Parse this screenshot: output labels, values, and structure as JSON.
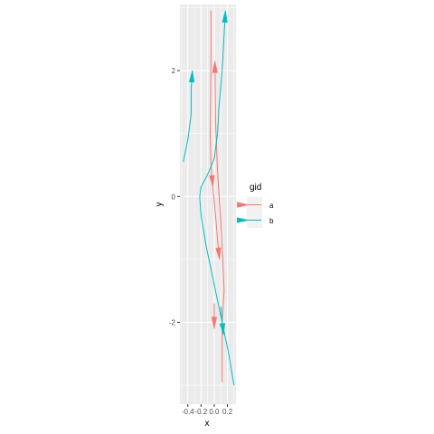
{
  "chart_data": {
    "type": "line",
    "xlabel": "x",
    "ylabel": "y",
    "xlim": [
      -0.52,
      0.33
    ],
    "ylim": [
      -3.3,
      3.05
    ],
    "x_ticks": [
      -0.4,
      -0.2,
      0.0,
      0.2
    ],
    "x_tick_labels": [
      "-0.4",
      "-0.2",
      "0.0",
      "0.2"
    ],
    "y_ticks": [
      -2,
      0,
      2
    ],
    "y_tick_labels": [
      "-2",
      "0",
      "2"
    ],
    "grid": true,
    "legend": {
      "title": "gid",
      "position": "right"
    },
    "colors": {
      "a": "#F8766D",
      "b": "#00BFC4",
      "panel": "#EBEBEB",
      "grid": "#FFFFFF"
    },
    "series": [
      {
        "name": "a",
        "color": "#F8766D",
        "arrows": "segment-ends",
        "paths": [
          {
            "x": [
              -0.05,
              -0.05,
              -0.06,
              -0.05,
              -0.02
            ],
            "y": [
              2.95,
              2.0,
              1.0,
              0.5,
              0.15
            ]
          },
          {
            "x": [
              -0.02,
              0.02,
              0.06,
              0.08
            ],
            "y": [
              0.15,
              -0.3,
              -0.8,
              -1.0
            ]
          },
          {
            "x": [
              0.0,
              0.0
            ],
            "y": [
              -1.7,
              -2.1
            ]
          },
          {
            "x": [
              0.12,
              0.12,
              0.15,
              0.13,
              0.1,
              0.05,
              0.02,
              0.01
            ],
            "y": [
              -2.95,
              -2.0,
              -1.5,
              -1.0,
              -0.4,
              0.4,
              1.2,
              2.15
            ]
          }
        ]
      },
      {
        "name": "b",
        "color": "#00BFC4",
        "arrows": "segment-ends",
        "paths": [
          {
            "x": [
              0.3,
              0.22,
              0.12,
              0.0,
              -0.12,
              -0.2,
              -0.22,
              -0.2,
              -0.1,
              0.0,
              0.05,
              0.07,
              0.12,
              0.17
            ],
            "y": [
              -3.0,
              -2.5,
              -2.0,
              -1.4,
              -0.8,
              -0.3,
              0.0,
              0.15,
              0.35,
              0.6,
              1.0,
              1.4,
              2.0,
              2.95
            ]
          },
          {
            "x": [
              -0.47,
              -0.4,
              -0.35,
              -0.35,
              -0.33
            ],
            "y": [
              0.55,
              0.9,
              1.3,
              1.7,
              2.0
            ]
          },
          {
            "x": [
              0.1,
              0.14
            ],
            "y": [
              -1.75,
              -2.2
            ]
          }
        ]
      }
    ]
  }
}
